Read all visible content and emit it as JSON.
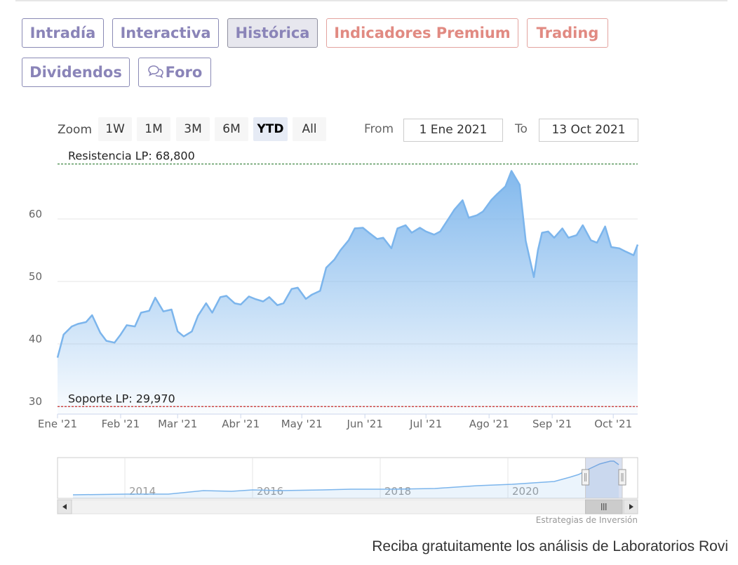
{
  "tabs": [
    {
      "label": "Intradía",
      "style": "normal"
    },
    {
      "label": "Interactiva",
      "style": "normal"
    },
    {
      "label": "Histórica",
      "style": "active"
    },
    {
      "label": "Indicadores Premium",
      "style": "premium"
    },
    {
      "label": "Trading",
      "style": "premium"
    },
    {
      "label": "Dividendos",
      "style": "normal"
    },
    {
      "label": "Foro",
      "style": "normal",
      "icon": "speech-bubble-icon"
    }
  ],
  "zoom": {
    "label": "Zoom",
    "buttons": [
      "1W",
      "1M",
      "3M",
      "6M",
      "YTD",
      "All"
    ],
    "selected": "YTD"
  },
  "range": {
    "from_label": "From",
    "from_value": "1 Ene 2021",
    "to_label": "To",
    "to_value": "13 Oct 2021"
  },
  "colors": {
    "line": "#7cb5ec",
    "resistance": "#2e7d32",
    "support": "#c62828",
    "tab_text": "#8a84b8",
    "premium_text": "#e18a82"
  },
  "chart_data": {
    "type": "area",
    "title": "",
    "xlabel": "",
    "ylabel": "",
    "ylim": [
      29.97,
      68.8
    ],
    "y_ticks": [
      30,
      40,
      50,
      60
    ],
    "x_ticks": [
      "Ene '21",
      "Feb '21",
      "Mar '21",
      "Abr '21",
      "May '21",
      "Jun '21",
      "Jul '21",
      "Ago '21",
      "Sep '21",
      "Oct '21"
    ],
    "grid": true,
    "resistance": {
      "label": "Resistencia LP: 68,800",
      "value": 68.8
    },
    "support": {
      "label": "Soporte LP: 29,970",
      "value": 29.97
    },
    "x": [
      "2021-01-01",
      "2021-01-04",
      "2021-01-08",
      "2021-01-11",
      "2021-01-15",
      "2021-01-18",
      "2021-01-22",
      "2021-01-25",
      "2021-01-29",
      "2021-02-01",
      "2021-02-04",
      "2021-02-08",
      "2021-02-11",
      "2021-02-15",
      "2021-02-18",
      "2021-02-22",
      "2021-02-26",
      "2021-03-01",
      "2021-03-04",
      "2021-03-08",
      "2021-03-11",
      "2021-03-15",
      "2021-03-18",
      "2021-03-22",
      "2021-03-25",
      "2021-03-29",
      "2021-04-01",
      "2021-04-05",
      "2021-04-08",
      "2021-04-12",
      "2021-04-15",
      "2021-04-19",
      "2021-04-22",
      "2021-04-26",
      "2021-04-29",
      "2021-05-03",
      "2021-05-06",
      "2021-05-10",
      "2021-05-13",
      "2021-05-17",
      "2021-05-20",
      "2021-05-24",
      "2021-05-27",
      "2021-05-31",
      "2021-06-03",
      "2021-06-07",
      "2021-06-10",
      "2021-06-14",
      "2021-06-17",
      "2021-06-21",
      "2021-06-24",
      "2021-06-28",
      "2021-07-01",
      "2021-07-05",
      "2021-07-08",
      "2021-07-12",
      "2021-07-15",
      "2021-07-19",
      "2021-07-22",
      "2021-07-26",
      "2021-07-29",
      "2021-08-02",
      "2021-08-05",
      "2021-08-09",
      "2021-08-12",
      "2021-08-16",
      "2021-08-19",
      "2021-08-23",
      "2021-08-25",
      "2021-08-27",
      "2021-08-30",
      "2021-09-02",
      "2021-09-06",
      "2021-09-09",
      "2021-09-13",
      "2021-09-16",
      "2021-09-20",
      "2021-09-23",
      "2021-09-27",
      "2021-09-30",
      "2021-10-04",
      "2021-10-07",
      "2021-10-11",
      "2021-10-13"
    ],
    "series": [
      {
        "values": [
          37.8,
          41.5,
          42.8,
          43.2,
          43.5,
          44.6,
          41.8,
          40.5,
          40.2,
          41.5,
          43.0,
          42.8,
          45.0,
          45.3,
          47.4,
          45.2,
          45.5,
          42.0,
          41.2,
          42.0,
          44.5,
          46.5,
          45.0,
          47.5,
          47.7,
          46.5,
          46.3,
          47.6,
          47.2,
          46.8,
          47.5,
          46.2,
          46.5,
          48.8,
          49.0,
          47.2,
          47.9,
          48.5,
          52.2,
          53.5,
          55.0,
          56.6,
          58.5,
          58.6,
          57.8,
          56.8,
          57.0,
          55.3,
          58.5,
          59.0,
          57.8,
          58.6,
          58.0,
          57.5,
          58.0,
          60.0,
          61.5,
          63.0,
          60.2,
          60.6,
          61.2,
          63.0,
          64.0,
          65.2,
          67.7,
          65.5,
          56.5,
          50.7,
          55.0,
          57.8,
          58.0,
          57.0,
          58.5,
          57.0,
          57.4,
          59.0,
          56.6,
          56.2,
          58.8,
          55.5,
          55.3,
          54.8,
          54.2,
          55.9
        ]
      }
    ]
  },
  "navigator": {
    "year_labels": [
      "2014",
      "2016",
      "2018",
      "2020"
    ],
    "window_from": 0.91,
    "window_to": 1.0
  },
  "credit": "Estrategias de Inversión",
  "cta": "Reciba gratuitamente los análisis de Laboratorios Rovi"
}
